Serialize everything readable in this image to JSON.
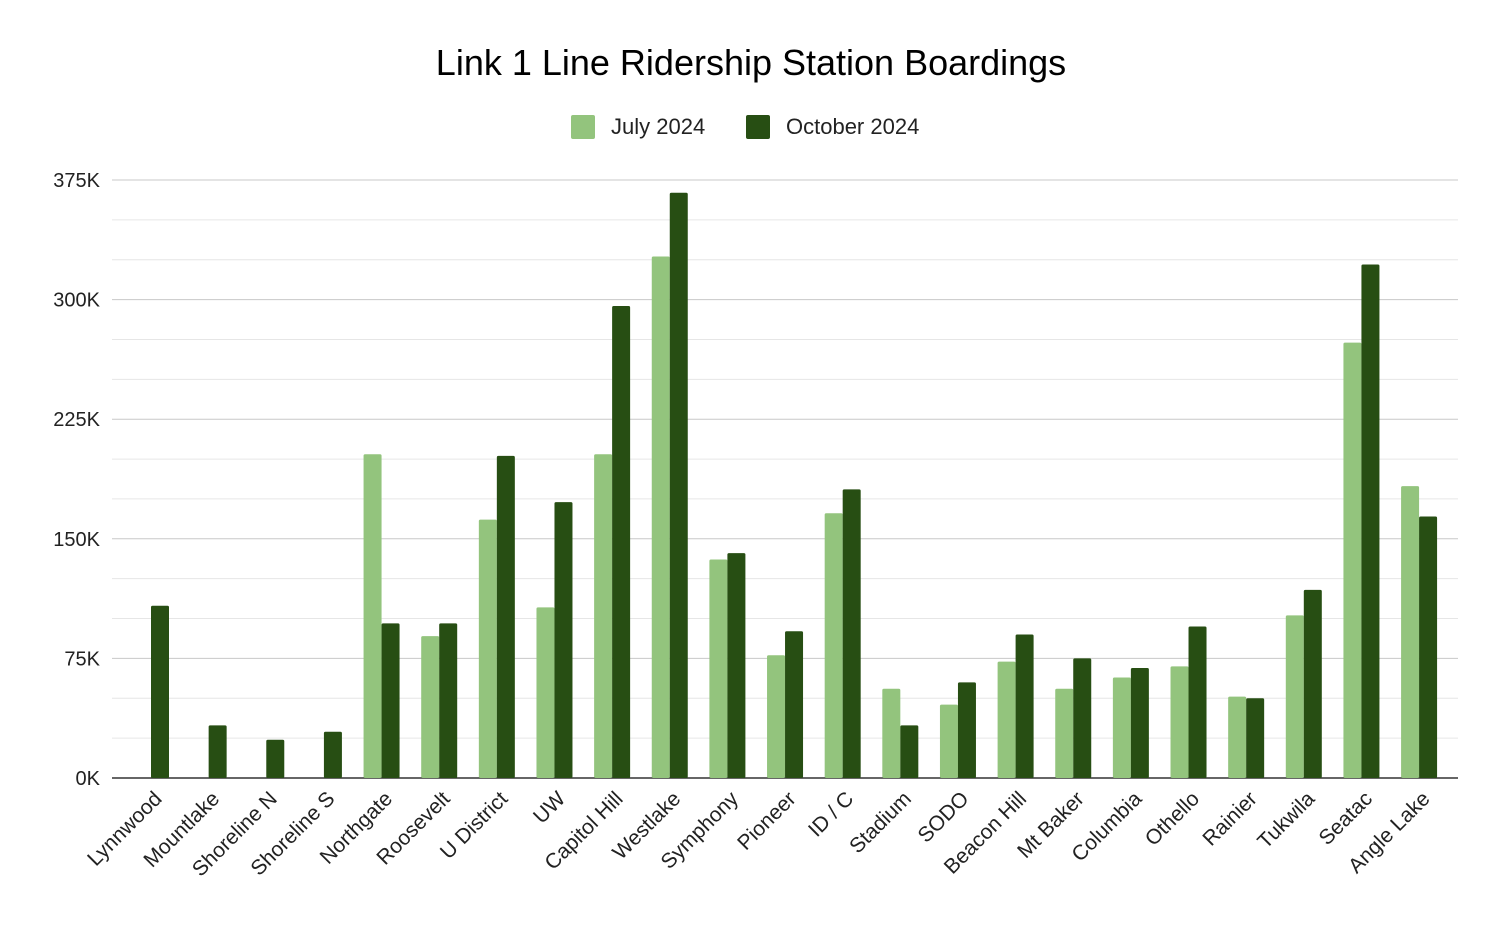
{
  "chart_data": {
    "type": "bar",
    "title": "Link 1 Line Ridership Station Boardings",
    "xlabel": "",
    "ylabel": "",
    "ylim": [
      0,
      375000
    ],
    "yticks": [
      0,
      75000,
      150000,
      225000,
      300000,
      375000
    ],
    "ytick_labels": [
      "0K",
      "75K",
      "150K",
      "225K",
      "300K",
      "375K"
    ],
    "grid": true,
    "legend_position": "top",
    "categories": [
      "Lynnwood",
      "Mountlake",
      "Shoreline N",
      "Shoreline S",
      "Northgate",
      "Roosevelt",
      "U District",
      "UW",
      "Capitol Hill",
      "Westlake",
      "Symphony",
      "Pioneer",
      "ID / C",
      "Stadium",
      "SODO",
      "Beacon Hill",
      "Mt Baker",
      "Columbia",
      "Othello",
      "Rainier",
      "Tukwila",
      "Seatac",
      "Angle Lake"
    ],
    "series": [
      {
        "name": "July 2024",
        "color": "#93c47d",
        "values": [
          0,
          0,
          0,
          0,
          203000,
          89000,
          162000,
          107000,
          203000,
          327000,
          137000,
          77000,
          166000,
          56000,
          46000,
          73000,
          56000,
          63000,
          70000,
          51000,
          102000,
          273000,
          183000
        ]
      },
      {
        "name": "October 2024",
        "color": "#274e13",
        "values": [
          108000,
          33000,
          24000,
          29000,
          97000,
          97000,
          202000,
          173000,
          296000,
          367000,
          141000,
          92000,
          181000,
          33000,
          60000,
          90000,
          75000,
          69000,
          95000,
          50000,
          118000,
          322000,
          164000
        ]
      }
    ]
  }
}
